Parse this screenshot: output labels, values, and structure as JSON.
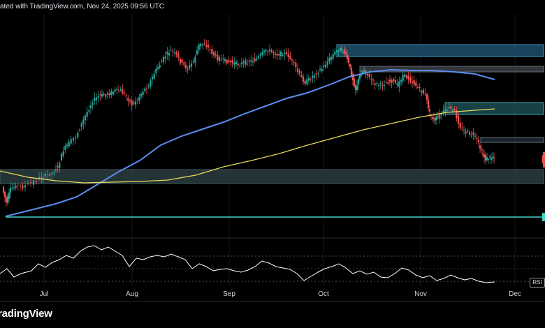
{
  "header": {
    "text": "ated with TradingView.com, Nov 24, 2025 09:56 UTC"
  },
  "x_axis": {
    "labels": [
      "Jul",
      "Aug",
      "Sep",
      "Oct",
      "Nov",
      "Dec"
    ]
  },
  "rsi": {
    "label": "RSI"
  },
  "branding": {
    "logo_text": "radingView"
  },
  "colors": {
    "background": "#000000",
    "candle_up": "#26a69a",
    "candle_down": "#ef5350",
    "ma_fast": "#5b8def",
    "ma_slow": "#e8d95a",
    "zone": "#1f5c66",
    "zone_border": "#5fb3c0",
    "support_line": "#3fd5c8",
    "rsi_line": "#ffffff",
    "grid": "#1c1f26"
  },
  "icons": [
    "tradingview-logo"
  ]
}
